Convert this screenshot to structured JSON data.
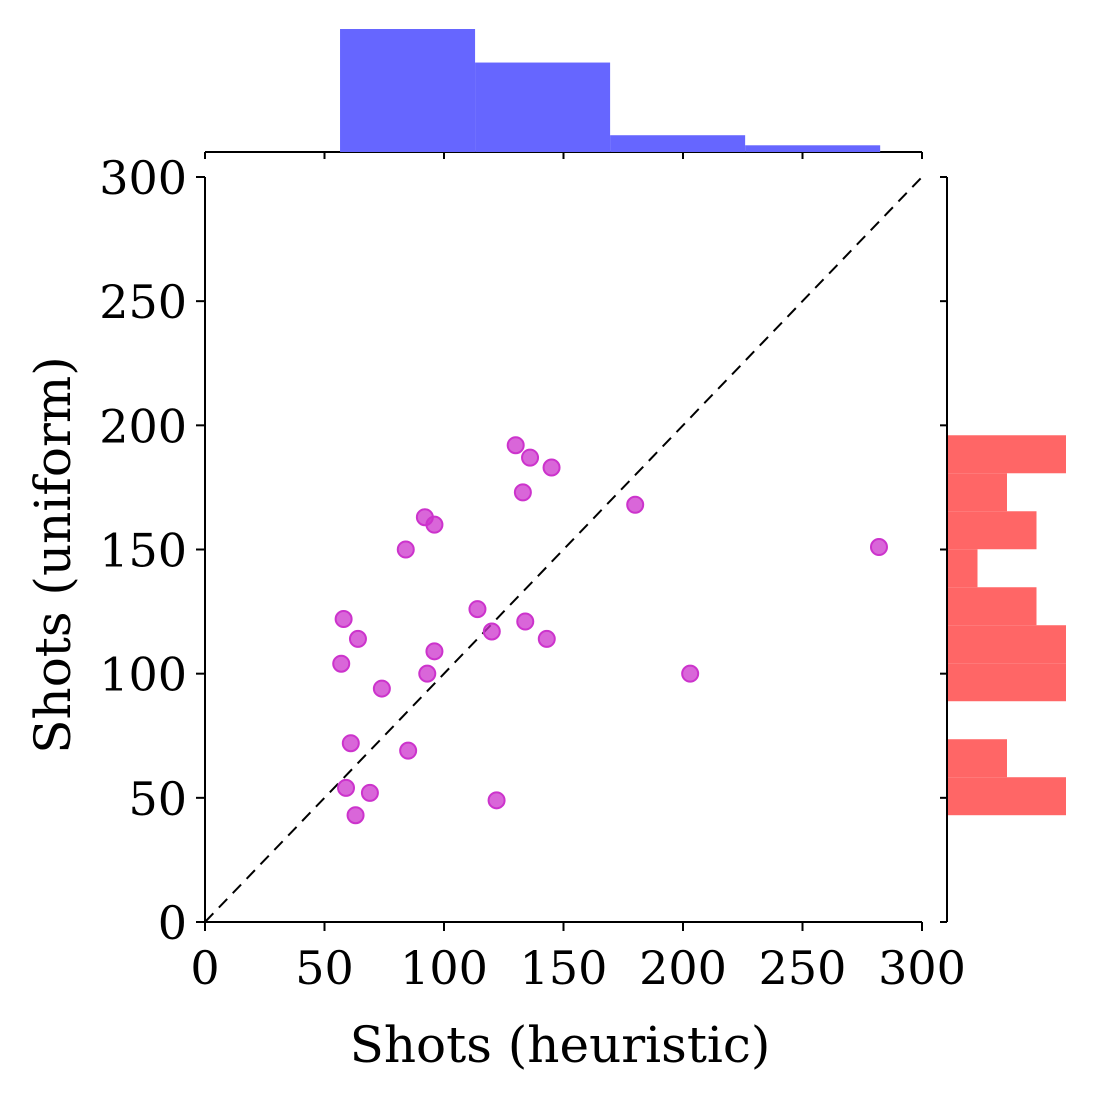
{
  "chart_data": {
    "type": "scatter",
    "title": "",
    "xlabel": "Shots (heuristic)",
    "ylabel": "Shots (uniform)",
    "xlim": [
      0,
      300
    ],
    "ylim": [
      0,
      300
    ],
    "x_ticks": [
      "0",
      "50",
      "100",
      "150",
      "200",
      "250",
      "300"
    ],
    "y_ticks": [
      "0",
      "50",
      "100",
      "150",
      "200",
      "250",
      "300"
    ],
    "grid": false,
    "reference_line": {
      "style": "dashed",
      "from": [
        0,
        0
      ],
      "to": [
        300,
        300
      ],
      "color": "#000000"
    },
    "series": [
      {
        "color": "#cc33cc",
        "x": [
          130,
          136,
          145,
          133,
          180,
          92,
          96,
          84,
          282,
          58,
          114,
          120,
          134,
          143,
          64,
          57,
          96,
          93,
          74,
          203,
          61,
          85,
          59,
          69,
          122,
          63
        ],
        "y": [
          192,
          187,
          183,
          173,
          168,
          163,
          160,
          150,
          151,
          122,
          126,
          117,
          121,
          114,
          114,
          104,
          109,
          100,
          94,
          100,
          72,
          69,
          54,
          52,
          49,
          43
        ]
      }
    ],
    "marginal_x_histogram": {
      "color": "#6666ff",
      "bin_edges": [
        56.5,
        113,
        169.5,
        226,
        282.5
      ],
      "counts": [
        11,
        8,
        1.5,
        0.6
      ]
    },
    "marginal_y_histogram": {
      "color": "#ff6666",
      "bin_edges": [
        43,
        58.3,
        73.6,
        88.9,
        104.2,
        119.5,
        134.8,
        150.1,
        165.4,
        180.7,
        196
      ],
      "counts": [
        4,
        2,
        0,
        4,
        4,
        3,
        1,
        3,
        2,
        4
      ]
    }
  }
}
